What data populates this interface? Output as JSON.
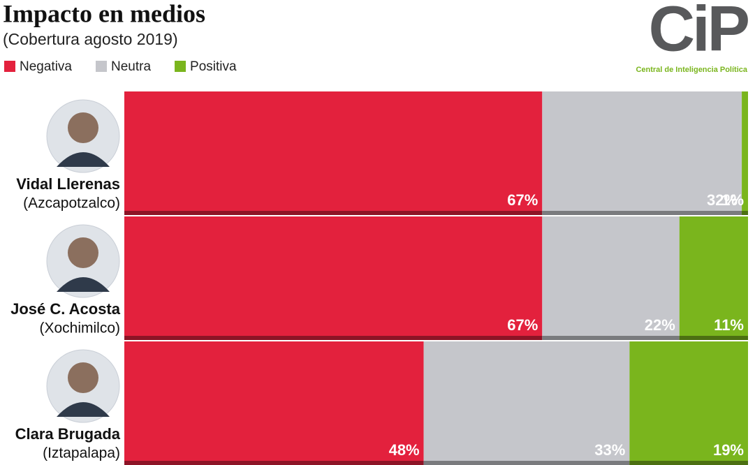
{
  "chart_data": {
    "type": "stacked-bar-horizontal",
    "title": "Impacto en medios",
    "subtitle": "(Cobertura agosto 2019)",
    "logo": {
      "text": "CiP",
      "caption": "Central de Inteligencia Política"
    },
    "categories": [
      "Vidal Llerenas",
      "José C. Acosta",
      "Clara Brugada"
    ],
    "category_sublabels": [
      "(Azcapotzalco)",
      "(Xochimilco)",
      "(Iztapalapa)"
    ],
    "xlim": [
      0,
      100
    ],
    "series": [
      {
        "name": "Negativa",
        "color": "#e3213d",
        "values": [
          67,
          67,
          48
        ],
        "value_labels": [
          "67%",
          "67%",
          "48%"
        ]
      },
      {
        "name": "Neutra",
        "color": "#c5c6cb",
        "values": [
          32,
          22,
          33
        ],
        "value_labels": [
          "32%",
          "22%",
          "33%"
        ]
      },
      {
        "name": "Positiva",
        "color": "#7ab51d",
        "values": [
          1,
          11,
          19
        ],
        "value_labels": [
          "1%",
          "11%",
          "19%"
        ]
      }
    ]
  }
}
